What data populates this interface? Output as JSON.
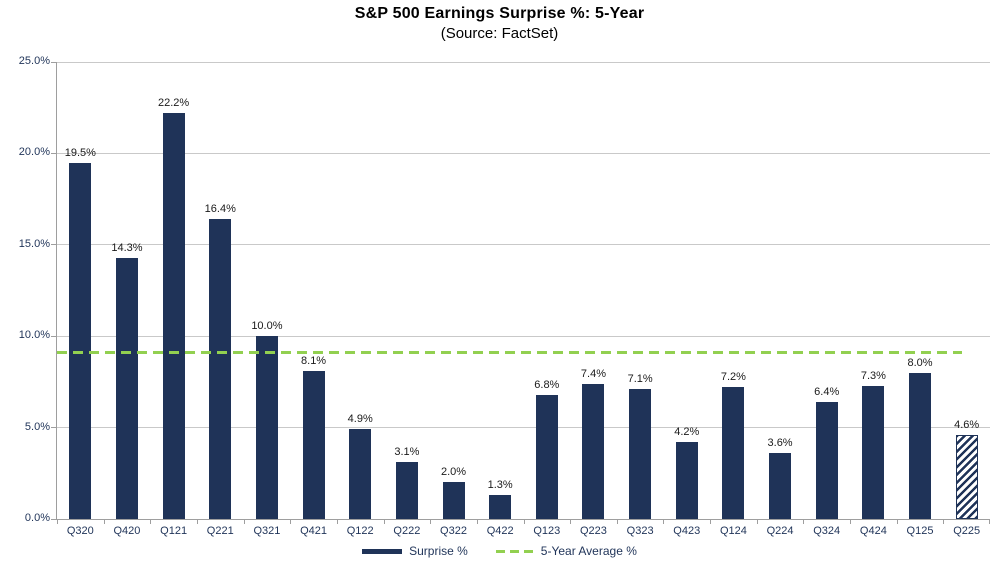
{
  "chart_data": {
    "type": "bar",
    "title": "S&P 500 Earnings Surprise %: 5-Year",
    "subtitle": "(Source: FactSet)",
    "categories": [
      "Q320",
      "Q420",
      "Q121",
      "Q221",
      "Q321",
      "Q421",
      "Q122",
      "Q222",
      "Q322",
      "Q422",
      "Q123",
      "Q223",
      "Q323",
      "Q423",
      "Q124",
      "Q224",
      "Q324",
      "Q424",
      "Q125",
      "Q225"
    ],
    "values": [
      19.5,
      14.3,
      22.2,
      16.4,
      10.0,
      8.1,
      4.9,
      3.1,
      2.0,
      1.3,
      6.8,
      7.4,
      7.1,
      4.2,
      7.2,
      3.6,
      6.4,
      7.3,
      8.0,
      4.6
    ],
    "data_labels": [
      "19.5%",
      "14.3%",
      "22.2%",
      "16.4%",
      "10.0%",
      "8.1%",
      "4.9%",
      "3.1%",
      "2.0%",
      "1.3%",
      "6.8%",
      "7.4%",
      "7.1%",
      "4.2%",
      "7.2%",
      "3.6%",
      "6.4%",
      "7.3%",
      "8.0%",
      "4.6%"
    ],
    "hatched_categories": [
      "Q225"
    ],
    "ylim": [
      0,
      25
    ],
    "ytick_step": 5,
    "ytick_labels": [
      "0.0%",
      "5.0%",
      "10.0%",
      "15.0%",
      "20.0%",
      "25.0%"
    ],
    "grid": "horizontal",
    "average_line": {
      "value": 9.1,
      "style": "dashed"
    },
    "legend": {
      "position": "bottom-center",
      "items": [
        {
          "label": "Surprise %",
          "swatch": "bar"
        },
        {
          "label": "5-Year Average %",
          "swatch": "dashed-line"
        }
      ]
    },
    "colors": {
      "bar": "#1f3358",
      "average_line": "#92d050",
      "gridline": "#c9c9c9",
      "axis": "#9e9e9e",
      "axis_text": "#1f3358",
      "data_label_text": "#1a1a1a"
    }
  }
}
